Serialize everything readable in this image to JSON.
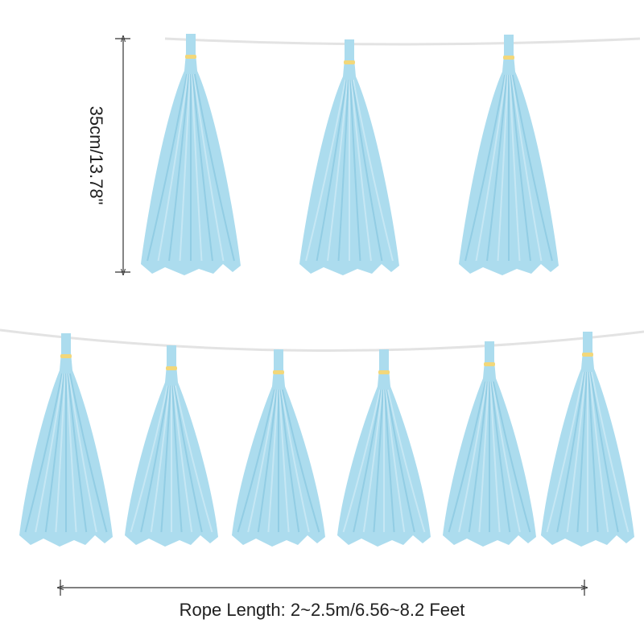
{
  "dimension": {
    "tassel_length_label": "35cm/13.78\"",
    "rope_length_label": "Rope Length: 2~2.5m/6.56~8.2 Feet"
  },
  "product": {
    "tassel_color": "#acdcee",
    "tassel_shadow_color": "#8cc9e1",
    "tassel_highlight_color": "#cdeaf5",
    "band_color": "#f2d77a",
    "rope_color": "#e3e3e3",
    "guide_line_color": "#333333",
    "tassel_count_top_row": 3,
    "tassel_count_bottom_row": 6
  }
}
